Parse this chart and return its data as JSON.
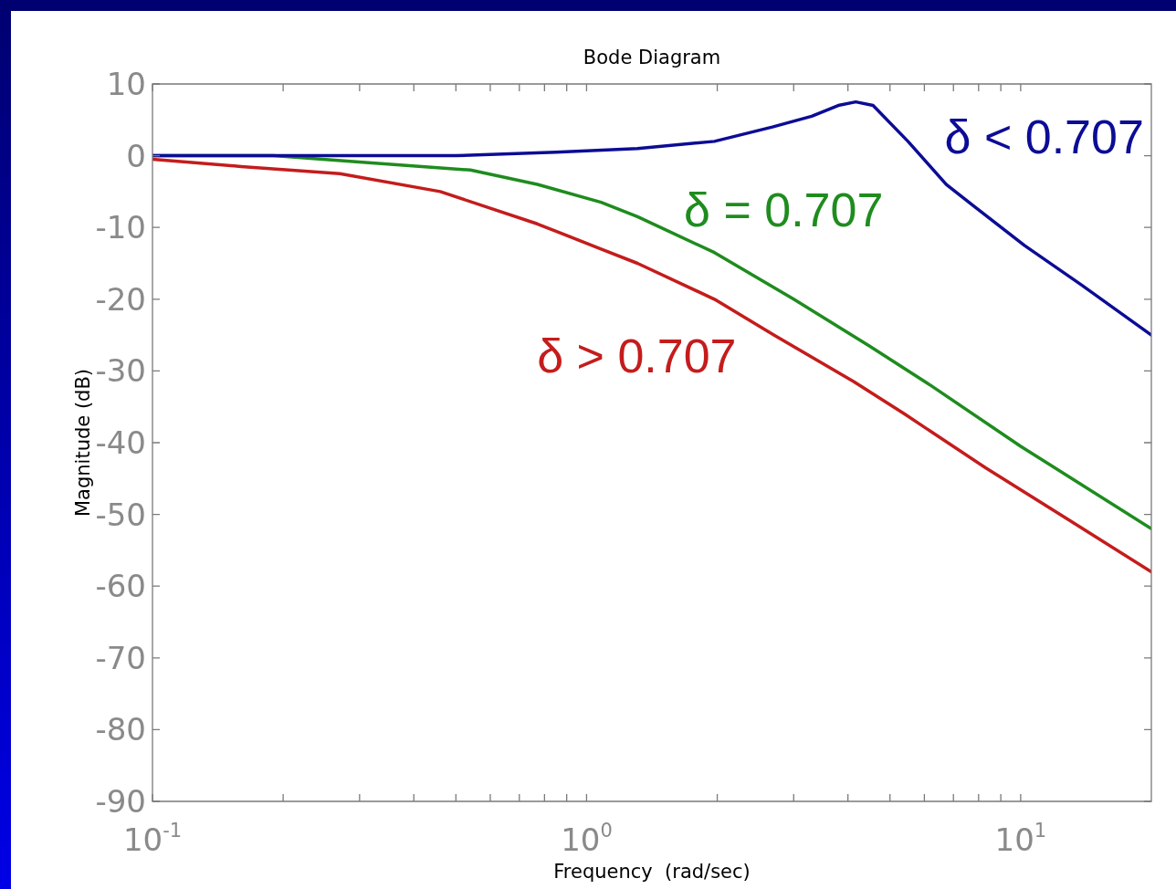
{
  "chart_data": {
    "type": "line",
    "title": "Bode Diagram",
    "xlabel": "Frequency  (rad/sec)",
    "ylabel": "Magnitude (dB)",
    "log": "x",
    "xlim": [
      0.1,
      20
    ],
    "ylim": [
      -90,
      10
    ],
    "xticks": [
      {
        "value": 0.1,
        "label": "10$^{-1}$"
      },
      {
        "value": 0.2,
        "label": null
      },
      {
        "value": 0.3,
        "label": null
      },
      {
        "value": 0.4,
        "label": null
      },
      {
        "value": 0.5,
        "label": null
      },
      {
        "value": 0.6,
        "label": null
      },
      {
        "value": 0.7,
        "label": null
      },
      {
        "value": 0.8,
        "label": null
      },
      {
        "value": 0.9,
        "label": null
      },
      {
        "value": 1,
        "label": "10$^{0}$"
      },
      {
        "value": 2,
        "label": null
      },
      {
        "value": 3,
        "label": null
      },
      {
        "value": 4,
        "label": null
      },
      {
        "value": 5,
        "label": null
      },
      {
        "value": 6,
        "label": null
      },
      {
        "value": 7,
        "label": null
      },
      {
        "value": 8,
        "label": null
      },
      {
        "value": 9,
        "label": null
      },
      {
        "value": 10,
        "label": "10$^{1}$"
      }
    ],
    "yticks": [
      -90,
      -80,
      -70,
      -60,
      -50,
      -40,
      -30,
      -20,
      -10,
      0,
      10
    ],
    "legend": false,
    "marker": "none",
    "line_style": "solid",
    "series": [
      {
        "name": "δ < 0.707",
        "color": "#0c0c96",
        "x": [
          0.1,
          0.5,
          0.85,
          1.31,
          1.97,
          2.68,
          3.3,
          3.8,
          4.17,
          4.57,
          5.5,
          6.74,
          7.79,
          10.2,
          13.8,
          20
        ],
        "values": [
          0,
          0,
          0.5,
          1,
          2,
          4,
          5.5,
          7,
          7.5,
          7,
          2,
          -4,
          -7,
          -12.5,
          -18,
          -25
        ]
      },
      {
        "name": "δ = 0.707",
        "color": "#1e8c1e",
        "x": [
          0.1,
          0.19,
          0.32,
          0.54,
          0.77,
          1.08,
          1.31,
          1.97,
          3.0,
          4.48,
          6.2,
          10,
          20
        ],
        "values": [
          0,
          0,
          -1,
          -2,
          -4,
          -6.5,
          -8.5,
          -13.5,
          -20,
          -26.5,
          -32,
          -40.5,
          -52
        ]
      },
      {
        "name": "δ > 0.707",
        "color": "#c41c1c",
        "x": [
          0.1,
          0.16,
          0.27,
          0.46,
          0.77,
          1.08,
          1.31,
          1.97,
          2.7,
          4.13,
          5.4,
          8.3,
          12.7,
          20
        ],
        "values": [
          -0.5,
          -1.5,
          -2.5,
          -5,
          -9.5,
          -13,
          -15,
          -20,
          -25,
          -31.5,
          -36,
          -43.5,
          -50.5,
          -58
        ]
      }
    ]
  }
}
